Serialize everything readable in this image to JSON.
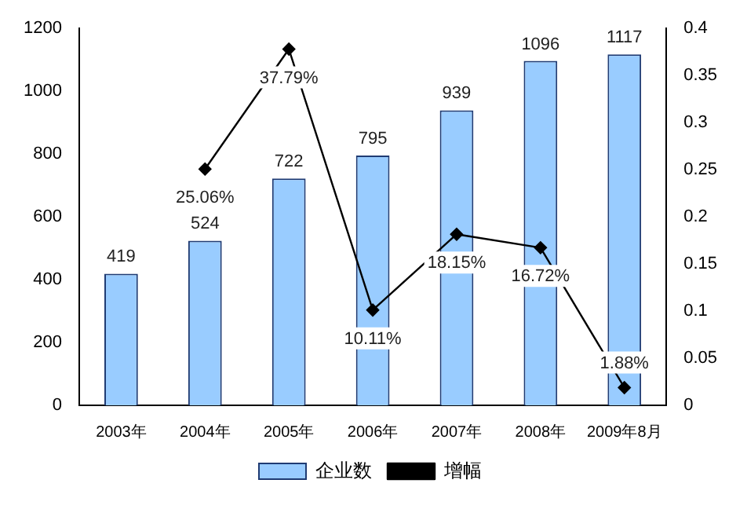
{
  "chart_data": {
    "type": "bar",
    "categories": [
      "2003年",
      "2004年",
      "2005年",
      "2006年",
      "2007年",
      "2008年",
      "2009年8月"
    ],
    "series": [
      {
        "name": "企业数",
        "color": "#99ccff",
        "values": [
          419,
          524,
          722,
          795,
          939,
          1096,
          1117
        ],
        "value_labels": [
          "419",
          "524",
          "722",
          "795",
          "939",
          "1096",
          "1117"
        ]
      },
      {
        "name": "增幅",
        "type": "line",
        "axis": "y2",
        "color": "#000000",
        "marker": "diamond",
        "values": [
          null,
          0.2506,
          0.3779,
          0.1011,
          0.1815,
          0.1672,
          0.0188
        ],
        "value_labels": [
          null,
          "25.06%",
          "37.79%",
          "10.11%",
          "18.15%",
          "16.72%",
          "1.88%"
        ]
      }
    ],
    "ylim": [
      0,
      1200
    ],
    "yticks": [
      0,
      200,
      400,
      600,
      800,
      1000,
      1200
    ],
    "y2lim": [
      0,
      0.4
    ],
    "y2ticks": [
      0,
      0.05,
      0.1,
      0.15,
      0.2,
      0.25,
      0.3,
      0.35,
      0.4
    ],
    "grid": false,
    "legend": "bottom"
  }
}
